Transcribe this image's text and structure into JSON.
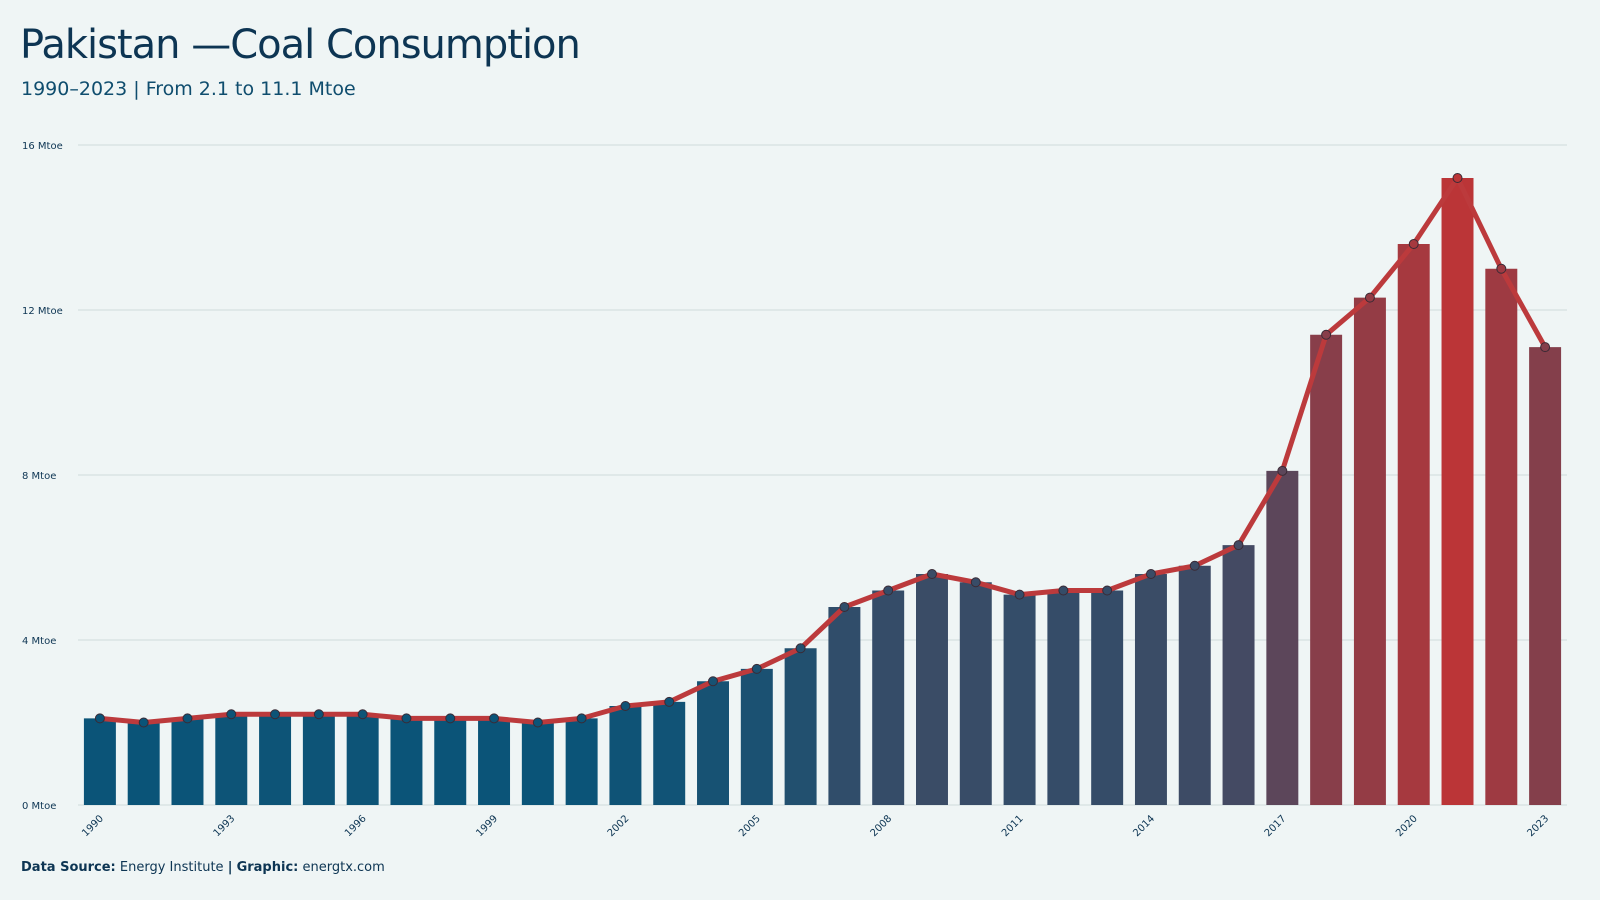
{
  "header": {
    "title": "Pakistan —Coal Consumption",
    "subtitle": "1990–2023 | From 2.1 to 11.1 Mtoe"
  },
  "footer": {
    "source_label": "Data Source:",
    "source_value": "Energy Institute",
    "separator": "|",
    "graphic_label": "Graphic:",
    "graphic_value": "energtx.com"
  },
  "colors": {
    "background": "#eff5f5",
    "grid": "#cfdadb",
    "line": "#bc3a3c",
    "bar_low": "#0a5478",
    "bar_high": "#bb3537"
  },
  "chart_data": {
    "type": "bar",
    "title": "Pakistan —Coal Consumption",
    "subtitle": "1990–2023 | From 2.1 to 11.1 Mtoe",
    "unit": "Mtoe",
    "x": [
      1990,
      1991,
      1992,
      1993,
      1994,
      1995,
      1996,
      1997,
      1998,
      1999,
      2000,
      2001,
      2002,
      2003,
      2004,
      2005,
      2006,
      2007,
      2008,
      2009,
      2010,
      2011,
      2012,
      2013,
      2014,
      2015,
      2016,
      2017,
      2018,
      2019,
      2020,
      2021,
      2022,
      2023
    ],
    "values": [
      2.1,
      2.0,
      2.1,
      2.2,
      2.2,
      2.2,
      2.2,
      2.1,
      2.1,
      2.1,
      2.0,
      2.1,
      2.4,
      2.5,
      3.0,
      3.3,
      3.8,
      4.8,
      5.2,
      5.6,
      5.4,
      5.1,
      5.2,
      5.2,
      5.6,
      5.8,
      6.3,
      8.1,
      11.4,
      12.3,
      13.6,
      15.2,
      13.0,
      11.1
    ],
    "x_tick_labels": [
      "1990",
      "1993",
      "1996",
      "1999",
      "2002",
      "2005",
      "2008",
      "2011",
      "2014",
      "2017",
      "2020",
      "2023"
    ],
    "y_ticks": [
      0,
      4,
      8,
      12,
      16
    ],
    "y_tick_labels": [
      "0 Mtoe",
      "4 Mtoe",
      "8 Mtoe",
      "12 Mtoe",
      "16 Mtoe"
    ],
    "ylim": [
      0,
      16
    ],
    "grid": true,
    "overlay": "line with markers"
  }
}
